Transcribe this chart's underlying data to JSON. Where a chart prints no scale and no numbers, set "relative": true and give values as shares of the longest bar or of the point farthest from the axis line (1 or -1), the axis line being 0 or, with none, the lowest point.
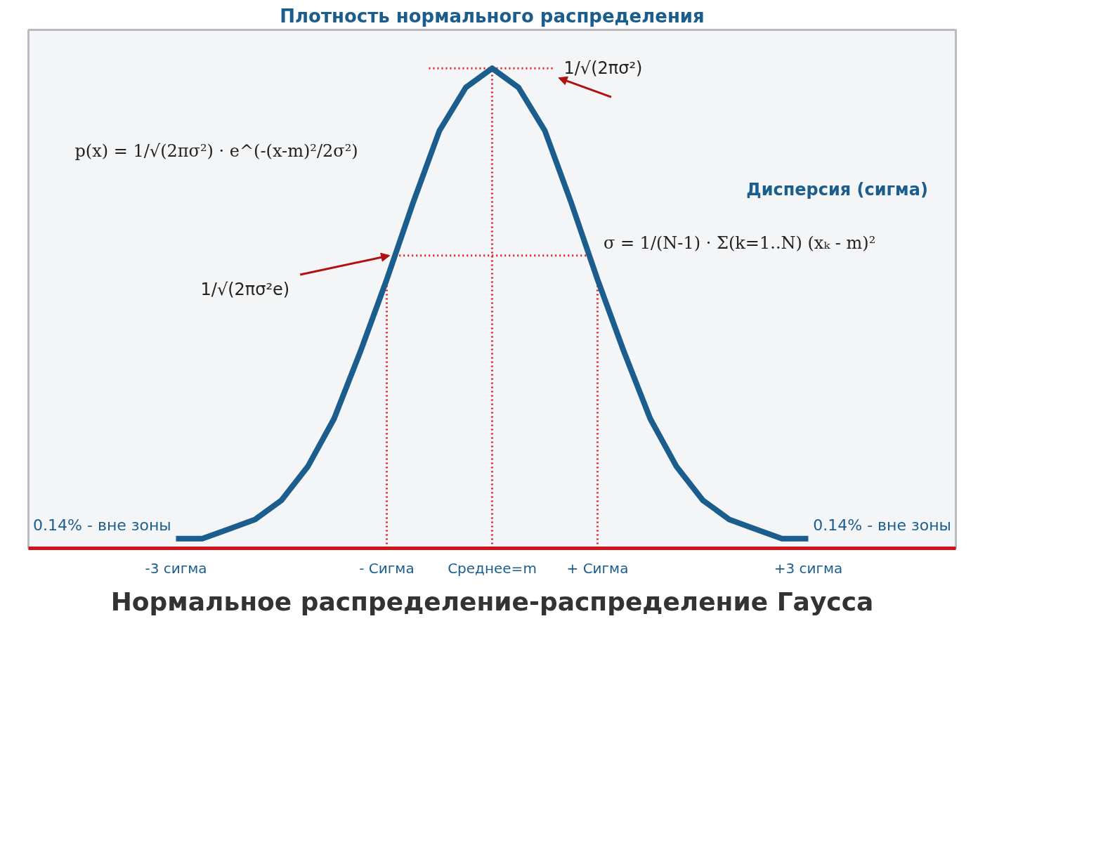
{
  "chart_data": {
    "type": "line",
    "title": "Плотность нормального распределения",
    "relative": true,
    "x": [
      -3,
      -2.75,
      -2.5,
      -2.25,
      -2,
      -1.75,
      -1.5,
      -1.25,
      -1,
      -0.75,
      -0.5,
      -0.25,
      0,
      0.25,
      0.5,
      0.75,
      1,
      1.25,
      1.5,
      1.75,
      2,
      2.25,
      2.5,
      2.75,
      3
    ],
    "series": [
      {
        "color": "#1b5e8e",
        "values": [
          0.02,
          0.02,
          0.04,
          0.06,
          0.1,
          0.17,
          0.27,
          0.41,
          0.56,
          0.72,
          0.87,
          0.96,
          1,
          0.96,
          0.87,
          0.72,
          0.56,
          0.41,
          0.27,
          0.17,
          0.1,
          0.06,
          0.04,
          0.02,
          0.02
        ]
      }
    ],
    "xlim": [
      -4.4,
      4.4
    ],
    "xticks": [
      {
        "value": -3,
        "label": "-3 сигма"
      },
      {
        "value": -1,
        "label": "- Сигма"
      },
      {
        "value": 0,
        "label": "Среднее=m"
      },
      {
        "value": 1,
        "label": "+ Сигма"
      },
      {
        "value": 3,
        "label": "+3 сигма"
      }
    ],
    "ref_lines": [
      {
        "axis": "x",
        "value": -1,
        "color": "#e0202a",
        "line_style": "dotted"
      },
      {
        "axis": "x",
        "value": 0,
        "color": "#e0202a",
        "line_style": "dotted"
      },
      {
        "axis": "x",
        "value": 1,
        "color": "#e0202a",
        "line_style": "dotted"
      },
      {
        "axis": "y",
        "value": 1,
        "label": "1/√(2πσ²)",
        "color": "#e0202a",
        "line_style": "dotted"
      },
      {
        "axis": "y",
        "value": 0.61,
        "label": "1/√(2πσ²e)",
        "color": "#e0202a",
        "line_style": "dotted"
      }
    ],
    "annotations": [
      "p(x) = 1/√(2πσ²) · e^(-(x-m)²/2σ²)",
      "Дисперсия (сигма)",
      "σ = 1/(N-1) · Σ(k=1..N) (xₖ - m)²",
      "0.14% - вне зоны",
      "0.14% - вне зоны",
      "Нормальное распределение-распределение Гаусса"
    ]
  }
}
